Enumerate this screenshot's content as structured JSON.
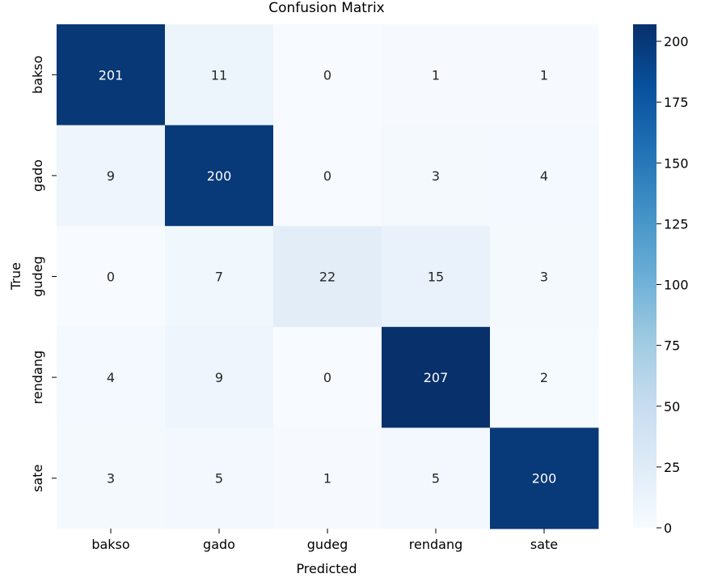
{
  "chart_data": {
    "type": "heatmap",
    "title": "Confusion Matrix",
    "xlabel": "Predicted",
    "ylabel": "True",
    "x_categories": [
      "bakso",
      "gado",
      "gudeg",
      "rendang",
      "sate"
    ],
    "y_categories": [
      "bakso",
      "gado",
      "gudeg",
      "rendang",
      "sate"
    ],
    "values": [
      [
        201,
        11,
        0,
        1,
        1
      ],
      [
        9,
        200,
        0,
        3,
        4
      ],
      [
        0,
        7,
        22,
        15,
        3
      ],
      [
        4,
        9,
        0,
        207,
        2
      ],
      [
        3,
        5,
        1,
        5,
        200
      ]
    ],
    "colormap": "Blues",
    "vmin": 0,
    "vmax": 207,
    "colorbar_ticks": [
      0,
      25,
      50,
      75,
      100,
      125,
      150,
      175,
      200
    ]
  }
}
